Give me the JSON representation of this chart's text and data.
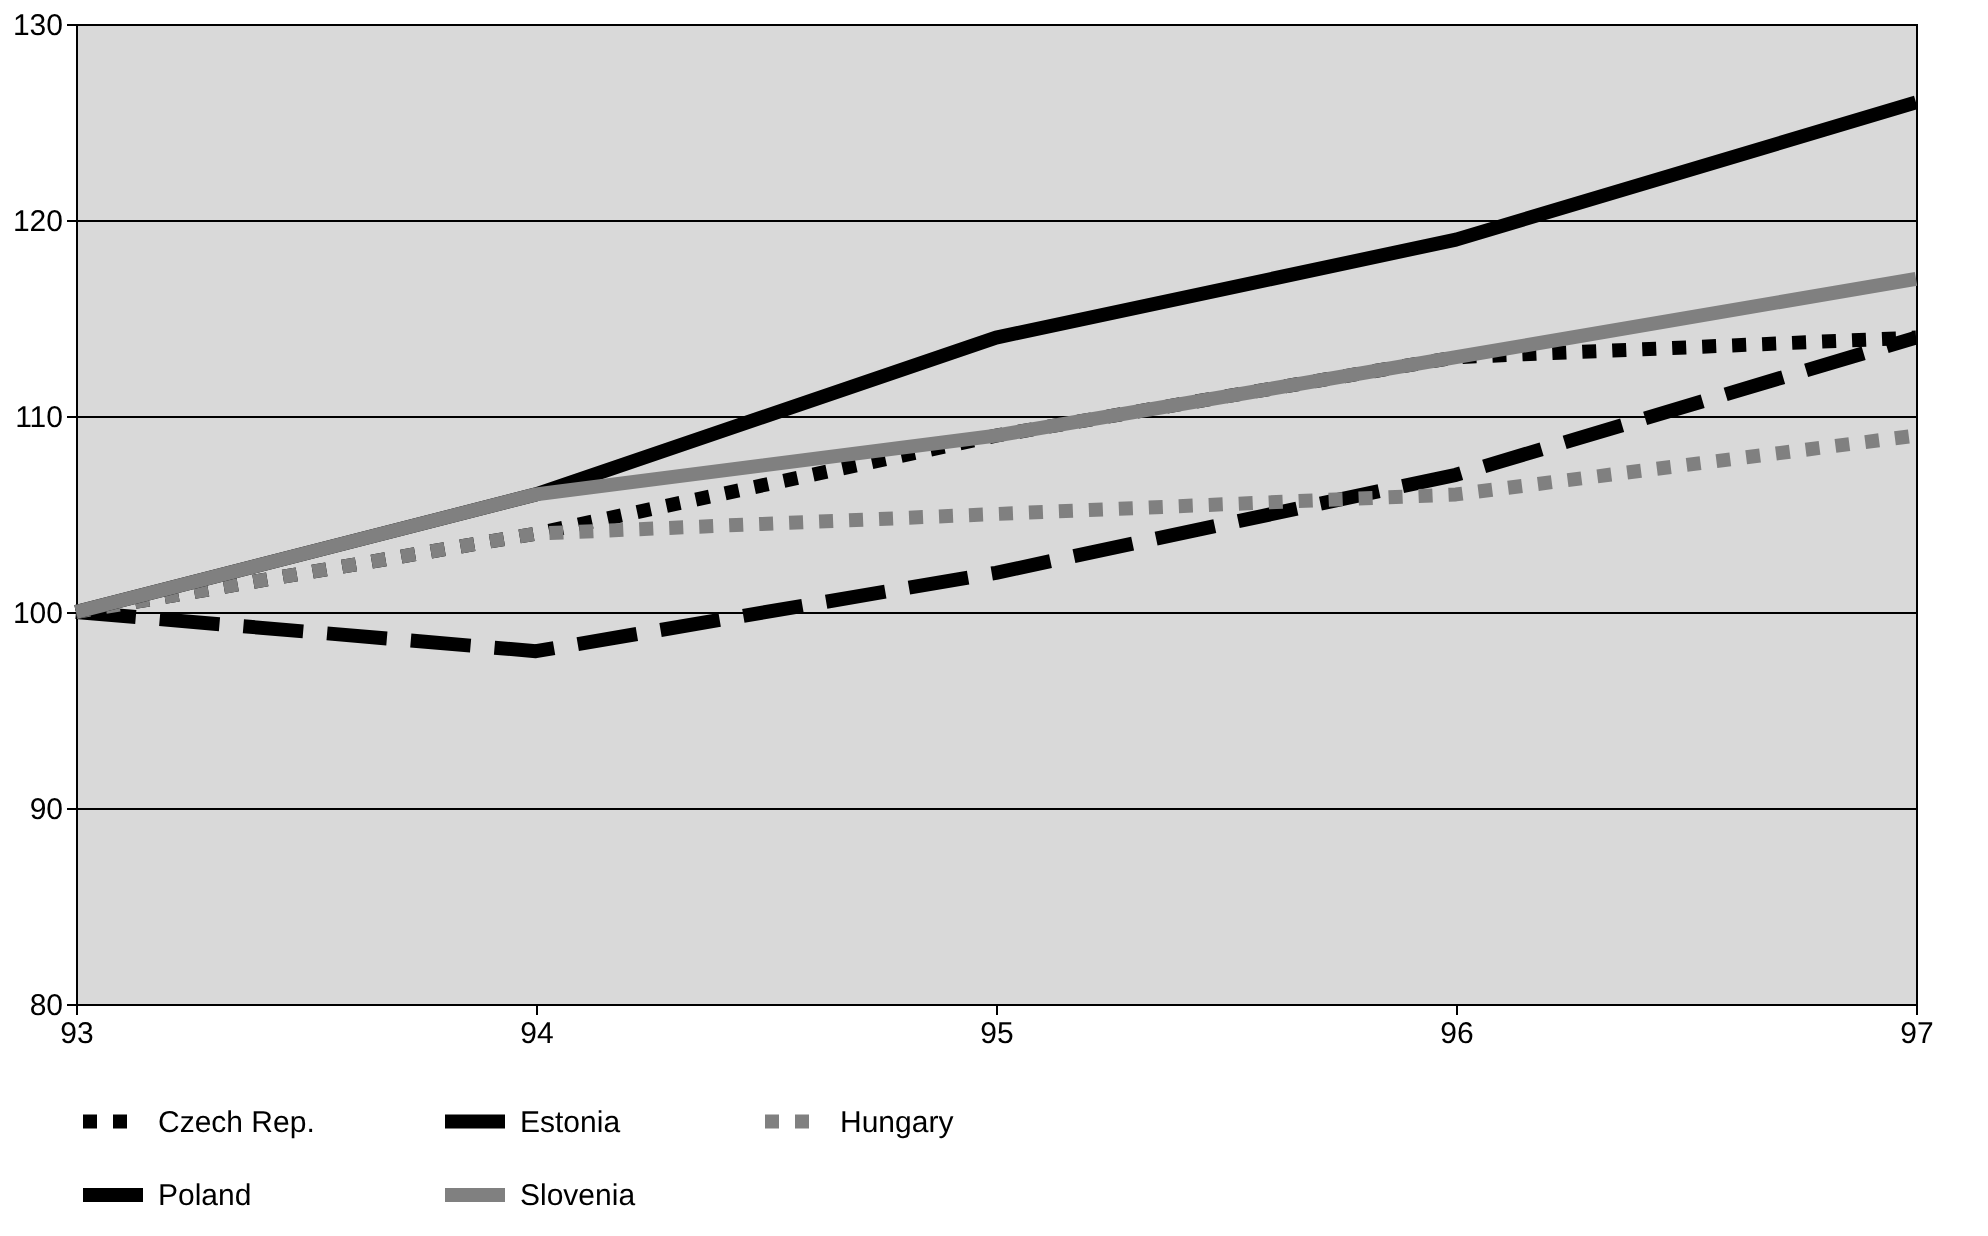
{
  "chart_data": {
    "type": "line",
    "x": [
      93,
      94,
      95,
      96,
      97
    ],
    "xlim": [
      93,
      97
    ],
    "xticks": [
      93,
      94,
      95,
      96,
      97
    ],
    "ylim": [
      80,
      130
    ],
    "yticks": [
      80,
      90,
      100,
      110,
      120,
      130
    ],
    "grid": "y",
    "legend": "bottom",
    "marker": "none",
    "series": [
      {
        "name": "Czech Rep.",
        "color": "#000000",
        "line_style": "dotted",
        "values": [
          100,
          104,
          109,
          113,
          114
        ]
      },
      {
        "name": "Estonia",
        "color": "#000000",
        "line_style": "dashed",
        "values": [
          100,
          98,
          102,
          107,
          114
        ]
      },
      {
        "name": "Hungary",
        "color": "#808080",
        "line_style": "dotted",
        "values": [
          100,
          104,
          105,
          106,
          109
        ]
      },
      {
        "name": "Poland",
        "color": "#000000",
        "line_style": "solid",
        "values": [
          100,
          106,
          114,
          119,
          126
        ]
      },
      {
        "name": "Slovenia",
        "color": "#808080",
        "line_style": "solid",
        "values": [
          100,
          106,
          109,
          113,
          117
        ]
      }
    ]
  }
}
